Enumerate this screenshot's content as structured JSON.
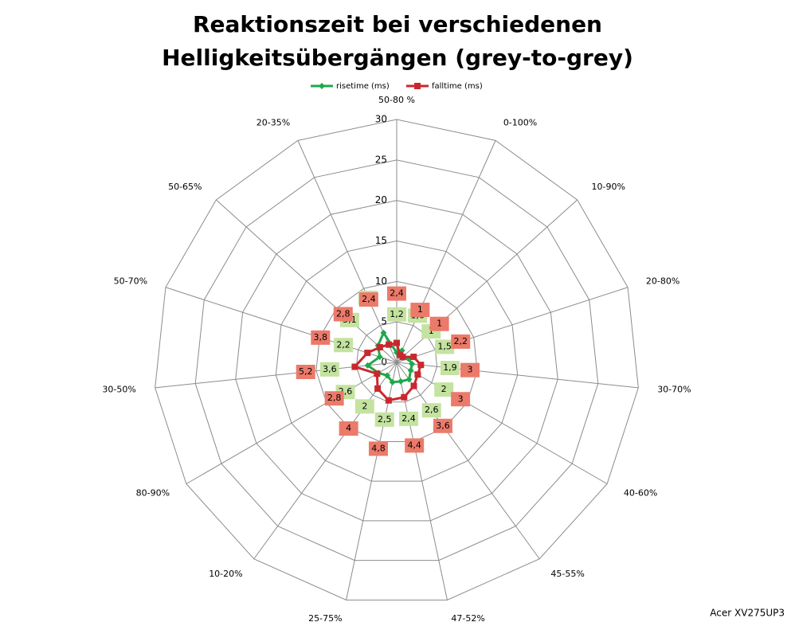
{
  "chart_data": {
    "type": "radar",
    "title": "Reaktionszeit bei verschiedenen Helligkeitsübergängen (grey-to-grey)",
    "annotation": "Acer XV275UP3",
    "categories": [
      "50-80 %",
      "0-100%",
      "10-90%",
      "20-80%",
      "30-70%",
      "40-60%",
      "45-55%",
      "47-52%",
      "25-75%",
      "10-20%",
      "80-90%",
      "30-50%",
      "50-70%",
      "50-65%",
      "20-35%"
    ],
    "ylim": [
      0,
      30
    ],
    "yticks": [
      0,
      5,
      10,
      15,
      20,
      25,
      30
    ],
    "grid": true,
    "legend": "top",
    "series": [
      {
        "name": "risetime (ms)",
        "color": "#1fa84a",
        "label_color": "#c4e3a0",
        "values": [
          1.2,
          1.6,
          1,
          1.5,
          1.9,
          2,
          2.6,
          2.4,
          2.5,
          2,
          2.6,
          3.6,
          2.2,
          3.1,
          4
        ],
        "value_labels": [
          "1,2",
          "1,6",
          "1",
          "1,5",
          "1,9",
          "2",
          "2,6",
          "2,4",
          "2,5",
          "2",
          "2,6",
          "3,6",
          "2,2",
          "3,1",
          "4"
        ]
      },
      {
        "name": "falltime (ms)",
        "color": "#c8282d",
        "label_color": "#ec7a6a",
        "values": [
          2.4,
          1,
          1,
          2.2,
          3,
          3,
          3.6,
          4.4,
          4.8,
          4,
          2.8,
          5.2,
          3.8,
          2.8,
          2.4
        ],
        "value_labels": [
          "2,4",
          "1",
          "1",
          "2,2",
          "3",
          "3",
          "3,6",
          "4,4",
          "4,8",
          "4",
          "2,8",
          "5,2",
          "3,8",
          "2,8",
          "2,4"
        ]
      }
    ]
  }
}
